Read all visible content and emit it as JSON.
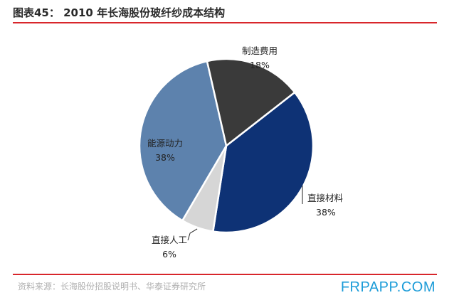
{
  "title": "图表45： 2010 年长海股份玻纤纱成本结构",
  "source": "资料来源：长海股份招股说明书、华泰证券研究所",
  "watermark": "FRPAPP.COM",
  "chart_data": {
    "type": "pie",
    "title": "图表45： 2010 年长海股份玻纤纱成本结构",
    "slices": [
      {
        "label": "直接材料",
        "value": 38,
        "value_text": "38%",
        "color": "#0e3275"
      },
      {
        "label": "直接人工",
        "value": 6,
        "value_text": "6%",
        "color": "#d6d6d6"
      },
      {
        "label": "能源动力",
        "value": 38,
        "value_text": "38%",
        "color": "#5d82ad"
      },
      {
        "label": "制造费用",
        "value": 18,
        "value_text": "18%",
        "color": "#3a3a3a"
      }
    ],
    "colors": {
      "accent_rule": "#d8262b",
      "watermark": "#1c9cd8"
    }
  }
}
